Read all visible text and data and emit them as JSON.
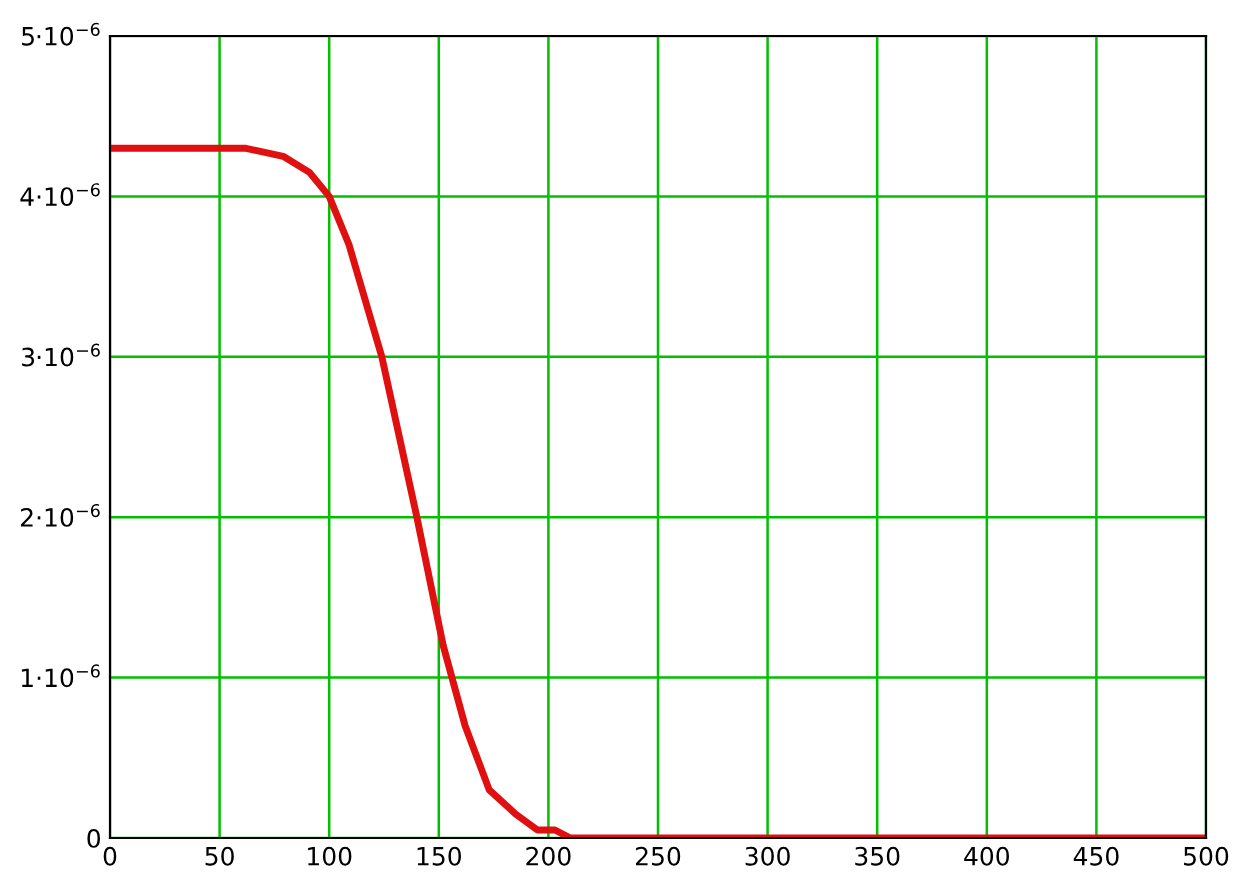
{
  "chart_data": {
    "type": "line",
    "x": [
      0,
      50,
      62,
      79,
      91,
      100,
      109,
      124,
      140,
      152,
      162,
      173,
      185,
      195,
      203,
      210,
      250,
      300,
      350,
      400,
      450,
      500
    ],
    "series": [
      {
        "color": "#e01010",
        "values": [
          4.3e-06,
          4.3e-06,
          4.3e-06,
          4.25e-06,
          4.15e-06,
          4e-06,
          3.7e-06,
          3e-06,
          2e-06,
          1.2e-06,
          7e-07,
          3e-07,
          1.5e-07,
          5e-08,
          5e-08,
          0,
          0,
          0,
          0,
          0,
          0,
          0
        ]
      }
    ],
    "xlim": [
      0,
      500
    ],
    "xticks": [
      0,
      50,
      100,
      150,
      200,
      250,
      300,
      350,
      400,
      450,
      500
    ],
    "ylim": [
      0,
      5e-06
    ],
    "yticks": [
      0,
      {
        "value": 1e-06,
        "label": "1·10$^{−6}$"
      },
      {
        "value": 2e-06,
        "label": "2·10$^{−6}$"
      },
      {
        "value": 3e-06,
        "label": "3·10$^{−6}$"
      },
      {
        "value": 4e-06,
        "label": "4·10$^{−6}$"
      },
      {
        "value": 5e-06,
        "label": "5·10$^{−6}$"
      }
    ],
    "grid": true,
    "line_style": "solid",
    "marker": "none"
  }
}
